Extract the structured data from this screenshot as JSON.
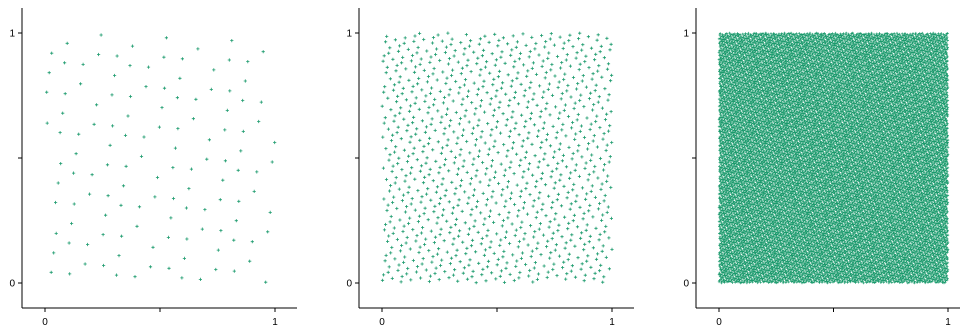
{
  "point_color": "#1a9a6c",
  "chart_data": [
    {
      "type": "scatter",
      "title": "",
      "xlabel": "",
      "ylabel": "",
      "xlim": [
        -0.1,
        1.1
      ],
      "ylim": [
        -0.09,
        1.1
      ],
      "x_ticks": [
        {
          "value": 0,
          "label": "0"
        },
        {
          "value": 0.5,
          "label": ""
        },
        {
          "value": 1,
          "label": "1"
        }
      ],
      "y_ticks": [
        {
          "value": 0,
          "label": "0"
        },
        {
          "value": 0.5,
          "label": ""
        },
        {
          "value": 1,
          "label": "1"
        }
      ],
      "grid": false,
      "point_count": 128,
      "marker": "small-cross"
    },
    {
      "type": "scatter",
      "title": "",
      "xlabel": "",
      "ylabel": "",
      "xlim": [
        -0.1,
        1.1
      ],
      "ylim": [
        -0.09,
        1.1
      ],
      "x_ticks": [
        {
          "value": 0,
          "label": "0"
        },
        {
          "value": 0.5,
          "label": ""
        },
        {
          "value": 1,
          "label": "1"
        }
      ],
      "y_ticks": [
        {
          "value": 0,
          "label": "0"
        },
        {
          "value": 0.5,
          "label": ""
        },
        {
          "value": 1,
          "label": "1"
        }
      ],
      "grid": false,
      "point_count": 1024,
      "marker": "small-cross"
    },
    {
      "type": "scatter",
      "title": "",
      "xlabel": "",
      "ylabel": "",
      "xlim": [
        -0.1,
        1.1
      ],
      "ylim": [
        -0.09,
        1.1
      ],
      "x_ticks": [
        {
          "value": 0,
          "label": "0"
        },
        {
          "value": 0.5,
          "label": ""
        },
        {
          "value": 1,
          "label": "1"
        }
      ],
      "y_ticks": [
        {
          "value": 0,
          "label": "0"
        },
        {
          "value": 0.5,
          "label": ""
        },
        {
          "value": 1,
          "label": "1"
        }
      ],
      "grid": false,
      "point_count": 16384,
      "marker": "small-cross"
    }
  ]
}
